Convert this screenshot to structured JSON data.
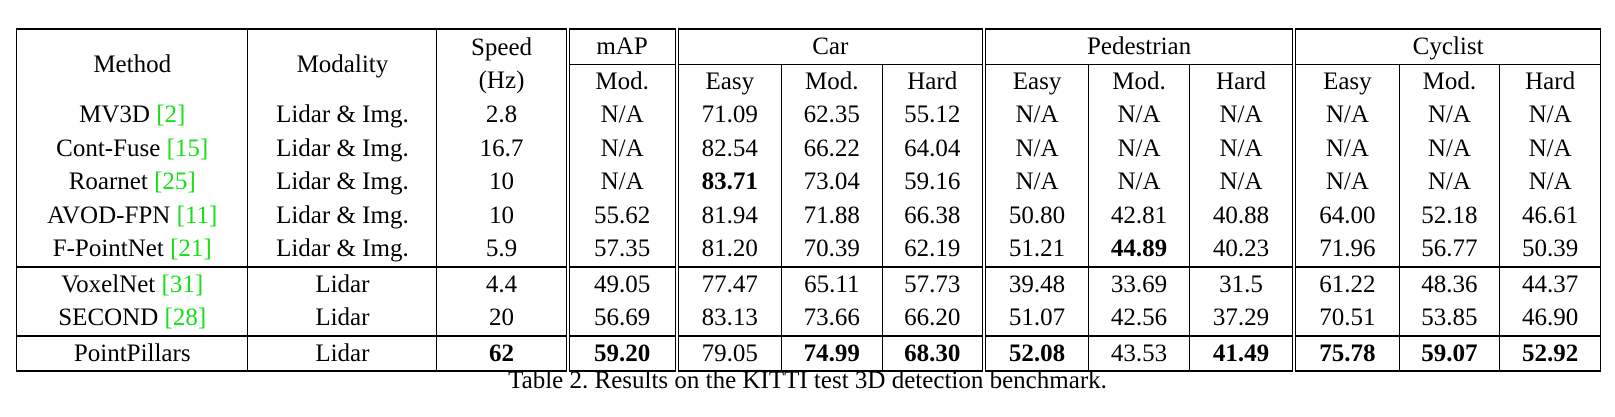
{
  "header": {
    "method": "Method",
    "modality": "Modality",
    "speed_line1": "Speed",
    "speed_line2": "(Hz)",
    "map": "mAP",
    "map_sub": "Mod.",
    "groups": [
      "Car",
      "Pedestrian",
      "Cyclist"
    ],
    "sub": [
      "Easy",
      "Mod.",
      "Hard"
    ]
  },
  "rows": [
    {
      "method": "MV3D",
      "cite": "[2]",
      "modality": "Lidar & Img.",
      "speed": "2.8",
      "map": "N/A",
      "car": [
        "71.09",
        "62.35",
        "55.12"
      ],
      "ped": [
        "N/A",
        "N/A",
        "N/A"
      ],
      "cyc": [
        "N/A",
        "N/A",
        "N/A"
      ],
      "bold": []
    },
    {
      "method": "Cont-Fuse",
      "cite": "[15]",
      "modality": "Lidar & Img.",
      "speed": "16.7",
      "map": "N/A",
      "car": [
        "82.54",
        "66.22",
        "64.04"
      ],
      "ped": [
        "N/A",
        "N/A",
        "N/A"
      ],
      "cyc": [
        "N/A",
        "N/A",
        "N/A"
      ],
      "bold": []
    },
    {
      "method": "Roarnet",
      "cite": "[25]",
      "modality": "Lidar & Img.",
      "speed": "10",
      "map": "N/A",
      "car": [
        "83.71",
        "73.04",
        "59.16"
      ],
      "ped": [
        "N/A",
        "N/A",
        "N/A"
      ],
      "cyc": [
        "N/A",
        "N/A",
        "N/A"
      ],
      "bold": [
        "car0"
      ]
    },
    {
      "method": "AVOD-FPN",
      "cite": "[11]",
      "modality": "Lidar & Img.",
      "speed": "10",
      "map": "55.62",
      "car": [
        "81.94",
        "71.88",
        "66.38"
      ],
      "ped": [
        "50.80",
        "42.81",
        "40.88"
      ],
      "cyc": [
        "64.00",
        "52.18",
        "46.61"
      ],
      "bold": []
    },
    {
      "method": "F-PointNet",
      "cite": "[21]",
      "modality": "Lidar & Img.",
      "speed": "5.9",
      "map": "57.35",
      "car": [
        "81.20",
        "70.39",
        "62.19"
      ],
      "ped": [
        "51.21",
        "44.89",
        "40.23"
      ],
      "cyc": [
        "71.96",
        "56.77",
        "50.39"
      ],
      "bold": [
        "ped1"
      ]
    },
    {
      "method": "VoxelNet",
      "cite": "[31]",
      "modality": "Lidar",
      "speed": "4.4",
      "map": "49.05",
      "car": [
        "77.47",
        "65.11",
        "57.73"
      ],
      "ped": [
        "39.48",
        "33.69",
        "31.5"
      ],
      "cyc": [
        "61.22",
        "48.36",
        "44.37"
      ],
      "bold": []
    },
    {
      "method": "SECOND",
      "cite": "[28]",
      "modality": "Lidar",
      "speed": "20",
      "map": "56.69",
      "car": [
        "83.13",
        "73.66",
        "66.20"
      ],
      "ped": [
        "51.07",
        "42.56",
        "37.29"
      ],
      "cyc": [
        "70.51",
        "53.85",
        "46.90"
      ],
      "bold": []
    },
    {
      "method": "PointPillars",
      "cite": "",
      "modality": "Lidar",
      "speed": "62",
      "map": "59.20",
      "car": [
        "79.05",
        "74.99",
        "68.30"
      ],
      "ped": [
        "52.08",
        "43.53",
        "41.49"
      ],
      "cyc": [
        "75.78",
        "59.07",
        "52.92"
      ],
      "bold": [
        "speed",
        "map",
        "car1",
        "car2",
        "ped0",
        "ped2",
        "cyc0",
        "cyc1",
        "cyc2"
      ]
    }
  ],
  "caption": "Table 2. Results on the KITTI test 3D detection benchmark."
}
